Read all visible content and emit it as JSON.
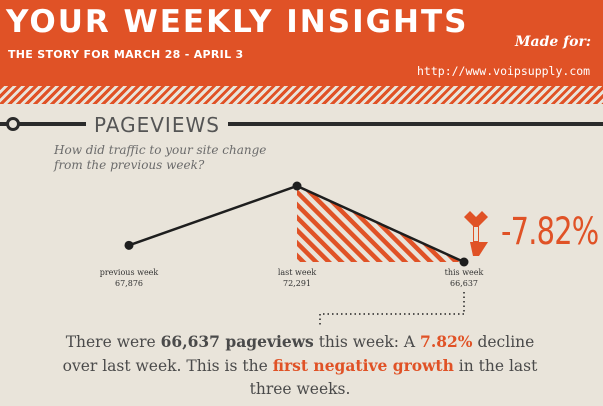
{
  "header": {
    "title": "YOUR WEEKLY INSIGHTS",
    "subtitle": "THE STORY FOR MARCH 28 - APRIL 3",
    "made_for_label": "Made for:",
    "client_url": "http://www.voipsupply.com"
  },
  "section": {
    "title": "PAGEVIEWS",
    "question": "How did traffic to your site change from the previous week?"
  },
  "colors": {
    "accent": "#e05226",
    "ink": "#222222",
    "background": "#e9e4da"
  },
  "chart_data": {
    "type": "line",
    "categories": [
      "previous week",
      "last week",
      "this week"
    ],
    "values": [
      67876,
      72291,
      66637
    ],
    "value_labels": [
      "67,876",
      "72,291",
      "66,637"
    ],
    "change_label": "-7.82%",
    "change_direction": "down",
    "highlight": "decline from last week to this week shown with hatched area"
  },
  "summary": {
    "p1": "There were ",
    "num": "66,637",
    "p2": " pageviews",
    "p3": " this week: A ",
    "pct": "7.82%",
    "p4": " decline over last week. This is the ",
    "hl": "first negative growth",
    "p5": " in the last three weeks."
  }
}
